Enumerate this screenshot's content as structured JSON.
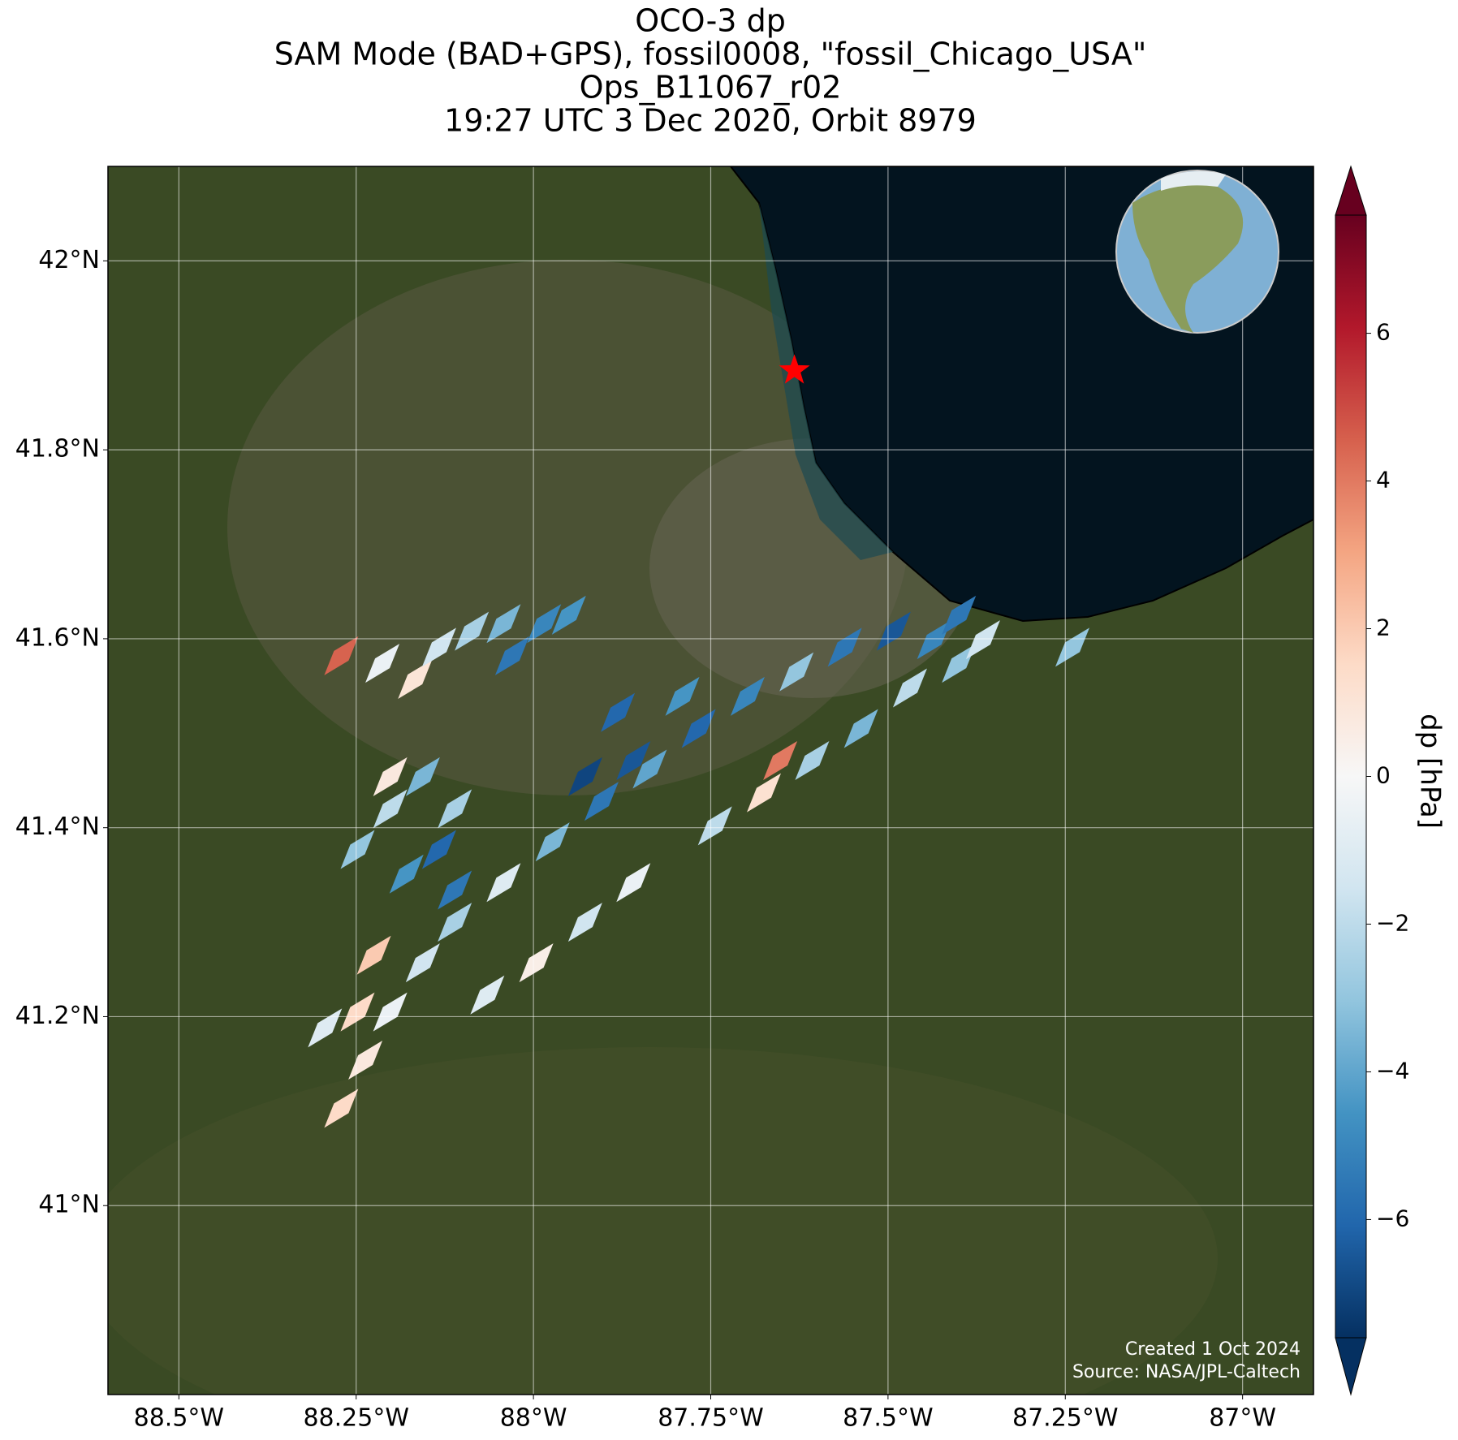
{
  "title": [
    "OCO-3 dp",
    "SAM Mode (BAD+GPS), fossil0008, \"fossil_Chicago_USA\"",
    "Ops_B11067_r02",
    "19:27 UTC 3 Dec 2020, Orbit 8979"
  ],
  "map": {
    "lon_range": [
      -88.6,
      -86.9
    ],
    "lat_range": [
      40.8,
      42.1
    ],
    "grid": true,
    "xticks": [
      {
        "value": -88.5,
        "label": "88.5°W"
      },
      {
        "value": -88.25,
        "label": "88.25°W"
      },
      {
        "value": -88,
        "label": "88°W"
      },
      {
        "value": -87.75,
        "label": "87.75°W"
      },
      {
        "value": -87.5,
        "label": "87.5°W"
      },
      {
        "value": -87.25,
        "label": "87.25°W"
      },
      {
        "value": -87,
        "label": "87°W"
      }
    ],
    "yticks": [
      {
        "value": 41,
        "label": "41°N"
      },
      {
        "value": 41.2,
        "label": "41.2°N"
      },
      {
        "value": 41.4,
        "label": "41.4°N"
      },
      {
        "value": 41.6,
        "label": "41.6°N"
      },
      {
        "value": 41.8,
        "label": "41.8°N"
      },
      {
        "value": 42,
        "label": "42°N"
      }
    ],
    "target": {
      "lon": -87.632,
      "lat": 41.884,
      "color": "#ff0000"
    }
  },
  "soundings": {
    "lon": [
      -88.271,
      -88.237,
      -88.202,
      -88.156,
      -88.111,
      -88.042,
      -87.973,
      -87.904,
      -87.836,
      -87.767,
      -87.698,
      -87.629,
      -87.561,
      -87.492,
      -87.435,
      -88.065,
      -87.996,
      -87.927,
      -87.859,
      -87.744,
      -87.675,
      -87.652,
      -87.607,
      -87.538,
      -87.469,
      -87.4,
      -87.366,
      -88.271,
      -88.213,
      -88.167,
      -88.133,
      -88.087,
      -88.042,
      -87.985,
      -87.95,
      -88.03,
      -88.248,
      -88.202,
      -88.156,
      -88.111,
      -88.202,
      -88.179,
      -88.133,
      -88.111,
      -88.225,
      -88.248,
      -88.294,
      -87.927,
      -87.859,
      -87.881,
      -87.79,
      -87.4,
      -87.24
    ],
    "lat": [
      41.103,
      41.154,
      41.205,
      41.257,
      41.3,
      41.342,
      41.385,
      41.428,
      41.462,
      41.505,
      41.539,
      41.565,
      41.591,
      41.608,
      41.599,
      41.223,
      41.257,
      41.3,
      41.342,
      41.402,
      41.437,
      41.471,
      41.471,
      41.505,
      41.548,
      41.574,
      41.599,
      41.582,
      41.574,
      41.557,
      41.591,
      41.608,
      41.616,
      41.616,
      41.625,
      41.582,
      41.377,
      41.42,
      41.454,
      41.42,
      41.454,
      41.351,
      41.377,
      41.334,
      41.265,
      41.205,
      41.188,
      41.454,
      41.471,
      41.522,
      41.539,
      41.625,
      41.591
    ],
    "dp": [
      1.5,
      0.8,
      -0.5,
      -1.5,
      -2.5,
      -1.0,
      -3.5,
      -5.5,
      -4.0,
      -6.0,
      -5.0,
      -3.0,
      -5.5,
      -6.5,
      -5.0,
      -1.0,
      0.5,
      -1.5,
      -0.5,
      -2.0,
      1.2,
      4.0,
      -2.5,
      -3.5,
      -2.0,
      -3.0,
      -1.5,
      4.5,
      -0.5,
      1.0,
      -1.5,
      -2.5,
      -3.5,
      -5.0,
      -4.5,
      -5.5,
      -3.0,
      -2.0,
      -3.5,
      -2.5,
      0.8,
      -4.5,
      -6.0,
      -5.5,
      2.0,
      1.5,
      -1.0,
      -7.0,
      -6.5,
      -6.0,
      -4.5,
      -5.5,
      -3.0
    ]
  },
  "colorbar": {
    "label": "dp [hPa]",
    "lim": [
      -7.6,
      7.6
    ],
    "ticks": [
      {
        "value": -6,
        "label": "−6"
      },
      {
        "value": -4,
        "label": "−4"
      },
      {
        "value": -2,
        "label": "−2"
      },
      0,
      2,
      4,
      6
    ],
    "colormap": [
      "#053061",
      "#2166ac",
      "#4393c3",
      "#92c5de",
      "#d1e5f0",
      "#f7f7f7",
      "#fddbc7",
      "#f4a582",
      "#d6604d",
      "#b2182b",
      "#67001f"
    ]
  },
  "credits": [
    "Created 1 Oct 2024",
    "Source: NASA/JPL-Caltech"
  ]
}
